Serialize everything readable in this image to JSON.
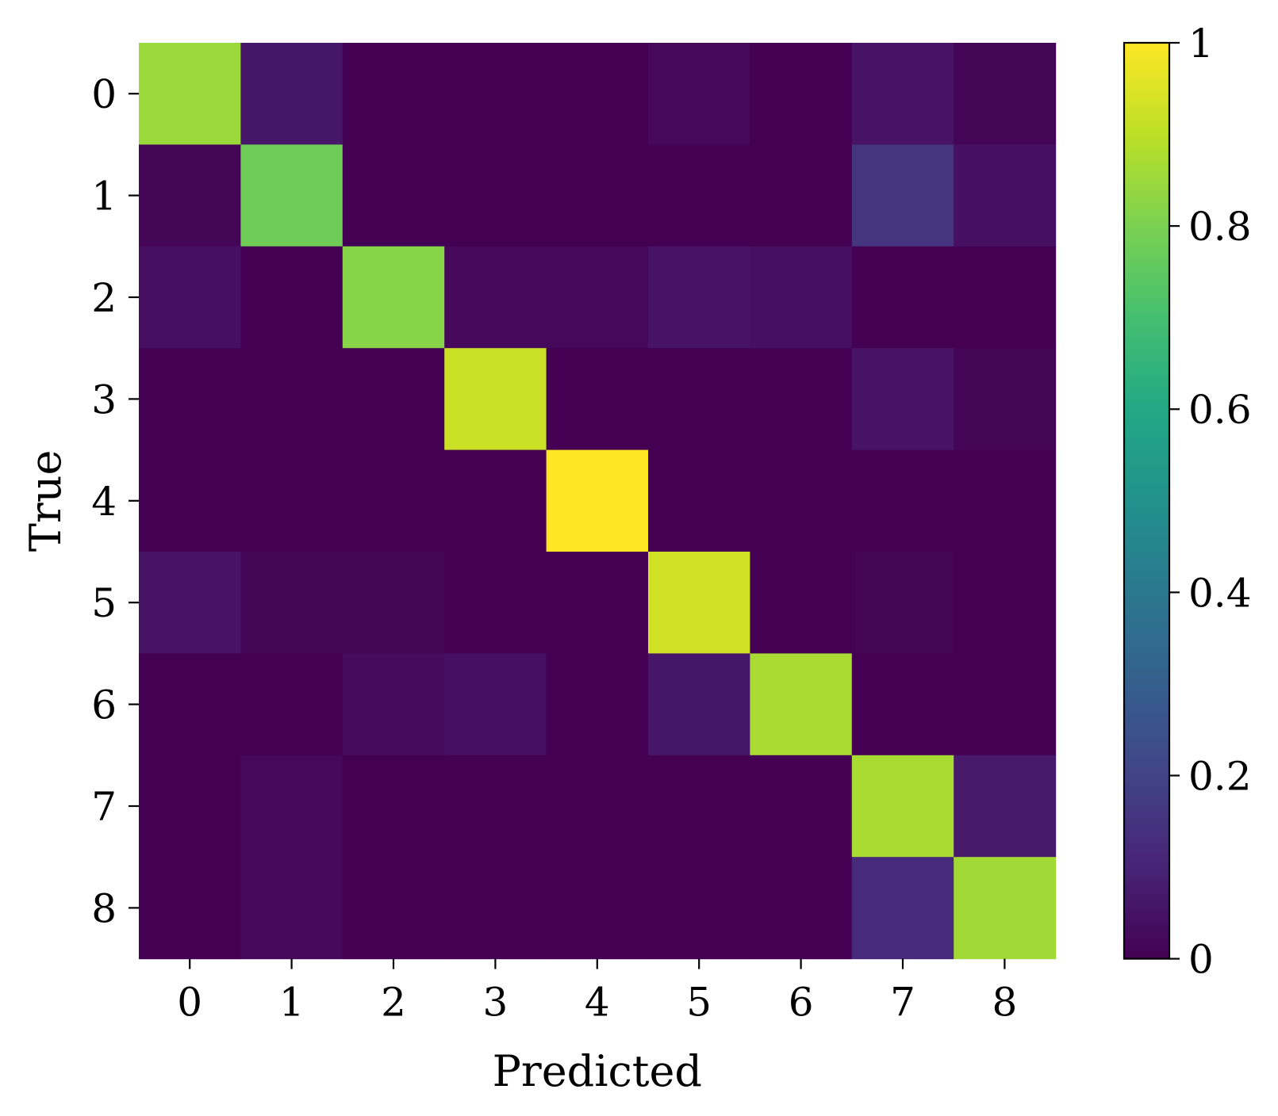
{
  "chart_data": {
    "type": "heatmap",
    "title": "",
    "xlabel": "Predicted",
    "ylabel": "True",
    "x_categories": [
      "0",
      "1",
      "2",
      "3",
      "4",
      "5",
      "6",
      "7",
      "8"
    ],
    "y_categories": [
      "0",
      "1",
      "2",
      "3",
      "4",
      "5",
      "6",
      "7",
      "8"
    ],
    "values": [
      [
        0.85,
        0.06,
        0.0,
        0.0,
        0.0,
        0.02,
        0.0,
        0.05,
        0.01
      ],
      [
        0.01,
        0.78,
        0.0,
        0.0,
        0.0,
        0.0,
        0.0,
        0.15,
        0.04
      ],
      [
        0.04,
        0.0,
        0.82,
        0.02,
        0.02,
        0.05,
        0.04,
        0.0,
        0.0
      ],
      [
        0.0,
        0.0,
        0.0,
        0.92,
        0.0,
        0.0,
        0.0,
        0.05,
        0.01
      ],
      [
        0.0,
        0.0,
        0.0,
        0.0,
        1.0,
        0.0,
        0.0,
        0.0,
        0.0
      ],
      [
        0.05,
        0.01,
        0.01,
        0.0,
        0.0,
        0.93,
        0.0,
        0.01,
        0.0
      ],
      [
        0.0,
        0.0,
        0.03,
        0.04,
        0.0,
        0.06,
        0.87,
        0.0,
        0.0
      ],
      [
        0.0,
        0.02,
        0.0,
        0.0,
        0.0,
        0.0,
        0.0,
        0.87,
        0.07
      ],
      [
        0.0,
        0.02,
        0.0,
        0.0,
        0.0,
        0.0,
        0.0,
        0.12,
        0.86
      ]
    ],
    "value_range": [
      0,
      1
    ],
    "colormap": "viridis",
    "colorbar": {
      "ticks": [
        0,
        0.2,
        0.4,
        0.6,
        0.8,
        1
      ],
      "tick_labels": [
        "0",
        "0.2",
        "0.4",
        "0.6",
        "0.8",
        "1"
      ],
      "position": "right"
    },
    "grid": false
  }
}
